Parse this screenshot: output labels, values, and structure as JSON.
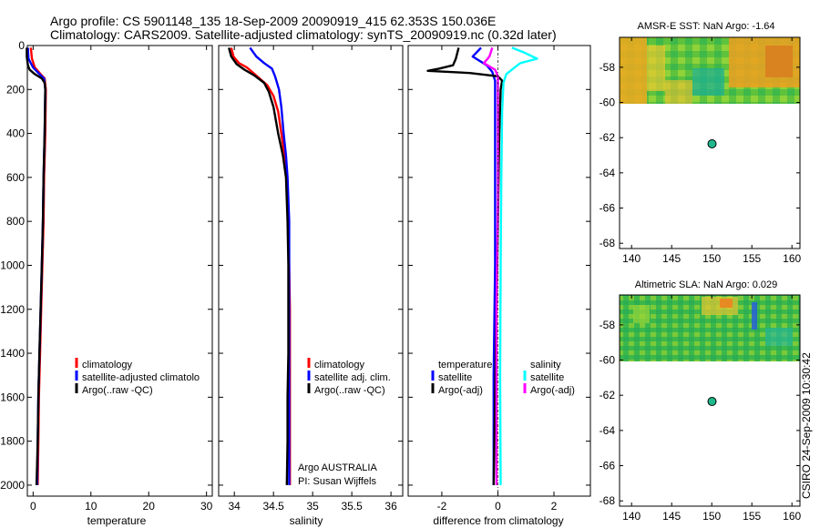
{
  "header": {
    "line1": "Argo profile: CS 5901148_135 18-Sep-2009 20090919_415 62.353S 150.036E",
    "line2": "Climatology: CARS2009. Satellite-adjusted climatology: synTS_20090919.nc (0.32d later)"
  },
  "credit": "CSIRO 24-Sep-2009 10:30:42",
  "colors": {
    "climatology": "#ff0000",
    "satellite": "#0000ff",
    "argo": "#000000",
    "salinity_satellite": "#00ffff",
    "salinity_argo": "#ff00ff",
    "dot": "#1fb88c"
  },
  "chart_data": [
    {
      "id": "temperature",
      "type": "line",
      "xlabel": "temperature",
      "xlim": [
        -1,
        31
      ],
      "ylim": [
        0,
        2050
      ],
      "y_inverted": true,
      "xticks": [
        "0",
        "10",
        "20",
        "30"
      ],
      "yticks": [
        "0",
        "200",
        "400",
        "600",
        "800",
        "1000",
        "1200",
        "1400",
        "1600",
        "1800",
        "2000"
      ],
      "legend": [
        "climatology",
        "satellite-adjusted climatolo",
        "Argo(..raw -QC)"
      ],
      "series": [
        {
          "name": "climatology",
          "points": [
            [
              -0.4,
              10
            ],
            [
              -0.2,
              60
            ],
            [
              0.3,
              100
            ],
            [
              1.3,
              130
            ],
            [
              2.0,
              150
            ],
            [
              2.2,
              200
            ],
            [
              2.1,
              400
            ],
            [
              1.9,
              600
            ],
            [
              1.8,
              800
            ],
            [
              1.6,
              1000
            ],
            [
              1.4,
              1200
            ],
            [
              1.2,
              1400
            ],
            [
              1.0,
              1600
            ],
            [
              0.9,
              1800
            ],
            [
              0.8,
              2000
            ]
          ]
        },
        {
          "name": "satellite",
          "points": [
            [
              -0.9,
              10
            ],
            [
              -0.8,
              60
            ],
            [
              0.0,
              100
            ],
            [
              1.1,
              130
            ],
            [
              1.9,
              150
            ],
            [
              2.1,
              200
            ],
            [
              2.0,
              400
            ],
            [
              1.8,
              600
            ],
            [
              1.7,
              800
            ],
            [
              1.5,
              1000
            ],
            [
              1.3,
              1200
            ],
            [
              1.1,
              1400
            ],
            [
              0.9,
              1600
            ],
            [
              0.8,
              1800
            ],
            [
              0.7,
              2000
            ]
          ]
        },
        {
          "name": "argo",
          "points": [
            [
              -1.1,
              10
            ],
            [
              -1.1,
              50
            ],
            [
              -0.9,
              90
            ],
            [
              -0.6,
              110
            ],
            [
              0.3,
              130
            ],
            [
              1.5,
              150
            ],
            [
              2.0,
              170
            ],
            [
              2.1,
              200
            ],
            [
              2.0,
              400
            ],
            [
              1.8,
              600
            ],
            [
              1.7,
              800
            ],
            [
              1.5,
              1000
            ],
            [
              1.3,
              1200
            ],
            [
              1.1,
              1400
            ],
            [
              0.9,
              1600
            ],
            [
              0.8,
              1800
            ],
            [
              0.6,
              2000
            ]
          ]
        }
      ]
    },
    {
      "id": "salinity",
      "type": "line",
      "xlabel": "salinity",
      "xlim": [
        33.8,
        36.15
      ],
      "ylim": [
        0,
        2050
      ],
      "y_inverted": true,
      "xticks": [
        "34",
        "34.5",
        "35",
        "35.5",
        "36"
      ],
      "legend": [
        "climatology",
        "satellite adj. clim.",
        "Argo(..raw -QC)"
      ],
      "annotations": [
        "Argo AUSTRALIA",
        "PI: Susan Wijffels"
      ],
      "series": [
        {
          "name": "climatology",
          "points": [
            [
              33.96,
              10
            ],
            [
              33.99,
              50
            ],
            [
              34.06,
              80
            ],
            [
              34.16,
              100
            ],
            [
              34.26,
              130
            ],
            [
              34.42,
              180
            ],
            [
              34.5,
              230
            ],
            [
              34.56,
              300
            ],
            [
              34.6,
              400
            ],
            [
              34.64,
              500
            ],
            [
              34.67,
              600
            ],
            [
              34.69,
              800
            ],
            [
              34.7,
              1000
            ],
            [
              34.71,
              1200
            ],
            [
              34.71,
              1400
            ],
            [
              34.71,
              1600
            ],
            [
              34.71,
              1800
            ],
            [
              34.71,
              2000
            ]
          ]
        },
        {
          "name": "satellite",
          "points": [
            [
              34.2,
              10
            ],
            [
              34.28,
              50
            ],
            [
              34.38,
              80
            ],
            [
              34.48,
              105
            ],
            [
              34.52,
              140
            ],
            [
              34.57,
              200
            ],
            [
              34.6,
              280
            ],
            [
              34.63,
              400
            ],
            [
              34.66,
              500
            ],
            [
              34.68,
              600
            ],
            [
              34.7,
              800
            ],
            [
              34.7,
              1000
            ],
            [
              34.7,
              1200
            ],
            [
              34.7,
              1400
            ],
            [
              34.7,
              1600
            ],
            [
              34.7,
              1800
            ],
            [
              34.7,
              2000
            ]
          ]
        },
        {
          "name": "argo",
          "points": [
            [
              33.93,
              10
            ],
            [
              33.96,
              50
            ],
            [
              34.03,
              85
            ],
            [
              34.13,
              110
            ],
            [
              34.25,
              135
            ],
            [
              34.38,
              170
            ],
            [
              34.44,
              210
            ],
            [
              34.5,
              280
            ],
            [
              34.56,
              400
            ],
            [
              34.62,
              500
            ],
            [
              34.66,
              600
            ],
            [
              34.68,
              800
            ],
            [
              34.69,
              1000
            ],
            [
              34.69,
              1200
            ],
            [
              34.69,
              1400
            ],
            [
              34.68,
              1600
            ],
            [
              34.68,
              1800
            ],
            [
              34.67,
              2000
            ]
          ]
        }
      ]
    },
    {
      "id": "difference",
      "type": "line",
      "xlabel": "difference from climatology",
      "xlim": [
        -3.2,
        3.3
      ],
      "ylim": [
        0,
        2050
      ],
      "y_inverted": true,
      "xticks": [
        "-2",
        "0",
        "2"
      ],
      "legend_temperature": {
        "title": "temperature",
        "entries": [
          "satellite",
          "Argo(-adj)"
        ]
      },
      "legend_salinity": {
        "title": "salinity",
        "entries": [
          "satellite",
          "Argo(-adj)"
        ]
      },
      "series": [
        {
          "name": "temperature satellite",
          "points": [
            [
              -0.6,
              10
            ],
            [
              -0.9,
              50
            ],
            [
              -0.4,
              90
            ],
            [
              -0.2,
              120
            ],
            [
              -0.1,
              160
            ],
            [
              -0.1,
              300
            ],
            [
              -0.1,
              600
            ],
            [
              -0.1,
              1000
            ],
            [
              -0.15,
              1500
            ],
            [
              -0.15,
              2000
            ]
          ]
        },
        {
          "name": "temperature Argo(-adj)",
          "points": [
            [
              -1.4,
              10
            ],
            [
              -1.5,
              60
            ],
            [
              -1.6,
              90
            ],
            [
              -2.1,
              105
            ],
            [
              -2.5,
              115
            ],
            [
              -1.0,
              125
            ],
            [
              0.0,
              140
            ],
            [
              0.15,
              160
            ],
            [
              0.1,
              200
            ],
            [
              0.05,
              400
            ],
            [
              0.0,
              800
            ],
            [
              -0.05,
              1200
            ],
            [
              -0.1,
              1600
            ],
            [
              -0.15,
              2000
            ]
          ]
        },
        {
          "name": "salinity satellite",
          "points": [
            [
              0.5,
              10
            ],
            [
              0.9,
              30
            ],
            [
              1.4,
              60
            ],
            [
              0.8,
              80
            ],
            [
              0.6,
              100
            ],
            [
              0.3,
              130
            ],
            [
              0.2,
              170
            ],
            [
              0.15,
              300
            ],
            [
              0.12,
              600
            ],
            [
              0.1,
              1000
            ],
            [
              0.08,
              1500
            ],
            [
              0.1,
              2000
            ]
          ]
        },
        {
          "name": "salinity Argo(-adj)",
          "points": [
            [
              -0.2,
              10
            ],
            [
              -0.3,
              50
            ],
            [
              -0.5,
              80
            ],
            [
              -0.1,
              110
            ],
            [
              0.0,
              140
            ],
            [
              0.0,
              300
            ],
            [
              0.0,
              700
            ],
            [
              -0.05,
              1200
            ],
            [
              -0.05,
              1600
            ],
            [
              -0.05,
              2000
            ]
          ]
        }
      ]
    },
    {
      "id": "amsr-sst",
      "type": "heatmap",
      "title": "AMSR-E SST: NaN Argo: -1.64",
      "xlim": [
        138.5,
        161
      ],
      "ylim": [
        -68.3,
        -56.3
      ],
      "xticks": [
        "140",
        "145",
        "150",
        "155",
        "160"
      ],
      "yticks": [
        "-58",
        "-60",
        "-62",
        "-64",
        "-66",
        "-68"
      ],
      "data_extent_lat": [
        -56.3,
        -60
      ],
      "argo_position": [
        150.036,
        -62.353
      ]
    },
    {
      "id": "altimetric-sla",
      "type": "heatmap",
      "title": "Altimetric SLA: NaN Argo: 0.029",
      "xlim": [
        138.5,
        161
      ],
      "ylim": [
        -68.3,
        -56.3
      ],
      "xticks": [
        "140",
        "145",
        "150",
        "155",
        "160"
      ],
      "yticks": [
        "-58",
        "-60",
        "-62",
        "-64",
        "-66",
        "-68"
      ],
      "data_extent_lat": [
        -56.3,
        -60
      ],
      "argo_position": [
        150.036,
        -62.353
      ]
    }
  ]
}
